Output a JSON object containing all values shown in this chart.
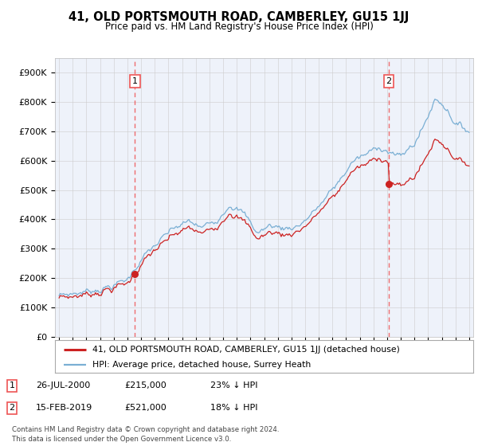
{
  "title": "41, OLD PORTSMOUTH ROAD, CAMBERLEY, GU15 1JJ",
  "subtitle": "Price paid vs. HM Land Registry's House Price Index (HPI)",
  "footer": "Contains HM Land Registry data © Crown copyright and database right 2024.\nThis data is licensed under the Open Government Licence v3.0.",
  "legend_line1": "41, OLD PORTSMOUTH ROAD, CAMBERLEY, GU15 1JJ (detached house)",
  "legend_line2": "HPI: Average price, detached house, Surrey Heath",
  "annotation1_date": "26-JUL-2000",
  "annotation1_price": "£215,000",
  "annotation1_info": "23% ↓ HPI",
  "annotation2_date": "15-FEB-2019",
  "annotation2_price": "£521,000",
  "annotation2_info": "18% ↓ HPI",
  "hpi_color": "#7aafd4",
  "price_color": "#cc2222",
  "vline_color": "#ee5555",
  "plot_bg": "#eef2fa",
  "grid_color": "#cccccc",
  "ylim": [
    0,
    950000
  ],
  "yticks": [
    0,
    100000,
    200000,
    300000,
    400000,
    500000,
    600000,
    700000,
    800000,
    900000
  ],
  "ytick_labels": [
    "£0",
    "£100K",
    "£200K",
    "£300K",
    "£400K",
    "£500K",
    "£600K",
    "£700K",
    "£800K",
    "£900K"
  ],
  "sale1_t": 2000.55,
  "sale1_price": 215000,
  "sale2_t": 2019.12,
  "sale2_price": 521000
}
